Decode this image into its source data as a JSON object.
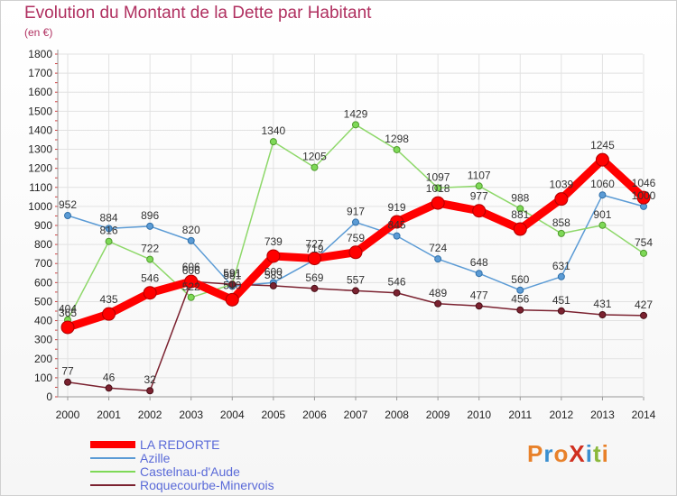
{
  "title": "Evolution du Montant de la Dette par Habitant",
  "subtitle": "(en €)",
  "logo": {
    "text": "ProXiti",
    "colors": [
      "#e8812a",
      "#3a8fd0",
      "#e8812a",
      "#d03020",
      "#3a8fd0",
      "#8ab83a",
      "#e8812a"
    ]
  },
  "chart_data": {
    "type": "line",
    "title": "Evolution du Montant de la Dette par Habitant",
    "subtitle": "(en €)",
    "xlabel": "",
    "ylabel": "",
    "x": [
      2000,
      2001,
      2002,
      2003,
      2004,
      2005,
      2006,
      2007,
      2008,
      2009,
      2010,
      2011,
      2012,
      2013,
      2014
    ],
    "ylim": [
      0,
      1800
    ],
    "yticks": [
      0,
      100,
      200,
      300,
      400,
      500,
      600,
      700,
      800,
      900,
      1000,
      1100,
      1200,
      1300,
      1400,
      1500,
      1600,
      1700,
      1800
    ],
    "grid": true,
    "legend_position": "bottom-left",
    "series": [
      {
        "name": "LA REDORTE",
        "color": "#ff0000",
        "values": [
          365,
          435,
          546,
          606,
          510,
          739,
          727,
          759,
          919,
          1018,
          977,
          881,
          1039,
          1245,
          1046
        ]
      },
      {
        "name": "Azille",
        "color": "#5b9bd5",
        "values": [
          952,
          884,
          896,
          820,
          581,
          600,
          719,
          917,
          845,
          724,
          648,
          560,
          631,
          1060,
          1000
        ]
      },
      {
        "name": "Castelnau-d'Aude",
        "color": "#7ed957",
        "values": [
          404,
          816,
          722,
          522,
          591,
          1340,
          1205,
          1429,
          1298,
          1097,
          1107,
          988,
          858,
          901,
          754
        ]
      },
      {
        "name": "Roquecourbe-Minervois",
        "color": "#7b2230",
        "values": [
          77,
          46,
          32,
          606,
          591,
          583,
          569,
          557,
          546,
          489,
          477,
          456,
          451,
          431,
          427
        ]
      }
    ]
  }
}
